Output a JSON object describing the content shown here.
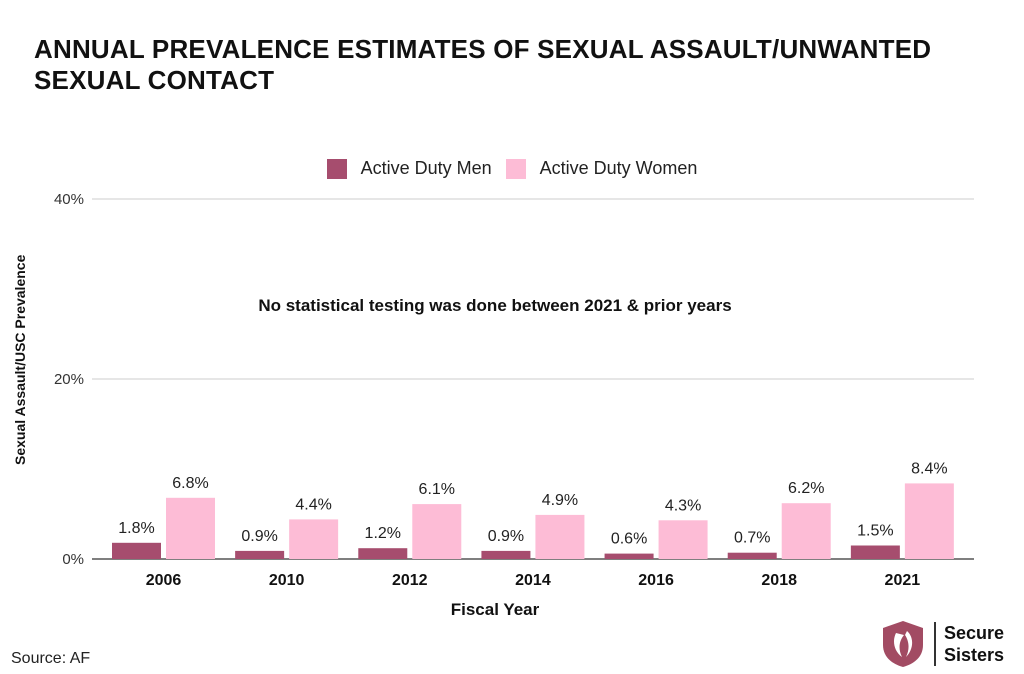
{
  "title": "ANNUAL PREVALENCE ESTIMATES OF SEXUAL ASSAULT/UNWANTED SEXUAL CONTACT",
  "source": "Source: AF",
  "brand": {
    "line1": "Secure",
    "line2": "Sisters"
  },
  "colors": {
    "men": "#A64D6E",
    "women": "#FDBCD6",
    "grid": "#CCCCCC",
    "axis": "#333333",
    "logo": "#A24B63"
  },
  "chart_data": {
    "type": "bar",
    "title": "ANNUAL PREVALENCE ESTIMATES OF SEXUAL ASSAULT/UNWANTED SEXUAL CONTACT",
    "xlabel": "Fiscal Year",
    "ylabel": "Sexual Assault/USC Prevalence",
    "ylim": [
      0,
      40
    ],
    "yticks": [
      0,
      20,
      40
    ],
    "ytick_labels": [
      "0%",
      "20%",
      "40%"
    ],
    "categories": [
      "2006",
      "2010",
      "2012",
      "2014",
      "2016",
      "2018",
      "2021"
    ],
    "series": [
      {
        "name": "Active Duty Men",
        "values": [
          1.8,
          0.9,
          1.2,
          0.9,
          0.6,
          0.7,
          1.5
        ],
        "labels": [
          "1.8%",
          "0.9%",
          "1.2%",
          "0.9%",
          "0.6%",
          "0.7%",
          "1.5%"
        ]
      },
      {
        "name": "Active Duty Women",
        "values": [
          6.8,
          4.4,
          6.1,
          4.9,
          4.3,
          6.2,
          8.4
        ],
        "labels": [
          "6.8%",
          "4.4%",
          "6.1%",
          "4.9%",
          "4.3%",
          "6.2%",
          "8.4%"
        ]
      }
    ],
    "annotation": "No statistical testing was done between 2021 & prior years",
    "legend_position": "top-center",
    "grid": true
  }
}
